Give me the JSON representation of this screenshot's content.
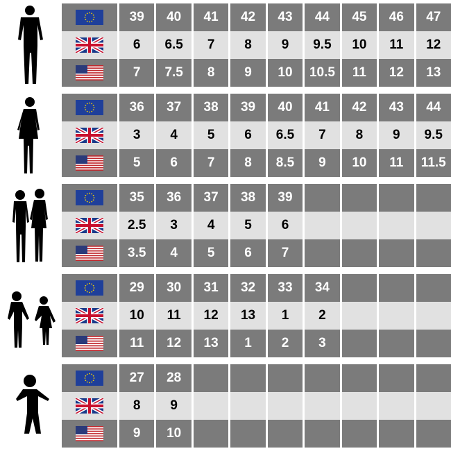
{
  "flags": [
    "eu-flag-icon",
    "uk-flag-icon",
    "us-flag-icon"
  ],
  "colors": {
    "dark_row": "#7b7b7b",
    "light_row": "#e1e1e1"
  },
  "groups": [
    {
      "name": "men",
      "icon": "man-silhouette-icon",
      "eu": [
        "39",
        "40",
        "41",
        "42",
        "43",
        "44",
        "45",
        "46",
        "47"
      ],
      "uk": [
        "6",
        "6.5",
        "7",
        "8",
        "9",
        "9.5",
        "10",
        "11",
        "12"
      ],
      "us": [
        "7",
        "7.5",
        "8",
        "9",
        "10",
        "10.5",
        "11",
        "12",
        "13"
      ]
    },
    {
      "name": "women",
      "icon": "woman-silhouette-icon",
      "eu": [
        "36",
        "37",
        "38",
        "39",
        "40",
        "41",
        "42",
        "43",
        "44"
      ],
      "uk": [
        "3",
        "4",
        "5",
        "6",
        "6.5",
        "7",
        "8",
        "9",
        "9.5"
      ],
      "us": [
        "5",
        "6",
        "7",
        "8",
        "8.5",
        "9",
        "10",
        "11",
        "11.5"
      ]
    },
    {
      "name": "teens",
      "icon": "teens-silhouette-icon",
      "eu": [
        "35",
        "36",
        "37",
        "38",
        "39",
        "",
        "",
        "",
        ""
      ],
      "uk": [
        "2.5",
        "3",
        "4",
        "5",
        "6",
        "",
        "",
        "",
        ""
      ],
      "us": [
        "3.5",
        "4",
        "5",
        "6",
        "7",
        "",
        "",
        "",
        ""
      ]
    },
    {
      "name": "kids",
      "icon": "kids-silhouette-icon",
      "eu": [
        "29",
        "30",
        "31",
        "32",
        "33",
        "34",
        "",
        "",
        ""
      ],
      "uk": [
        "10",
        "11",
        "12",
        "13",
        "1",
        "2",
        "",
        "",
        ""
      ],
      "us": [
        "11",
        "12",
        "13",
        "1",
        "2",
        "3",
        "",
        "",
        ""
      ]
    },
    {
      "name": "toddler",
      "icon": "toddler-silhouette-icon",
      "eu": [
        "27",
        "28",
        "",
        "",
        "",
        "",
        "",
        "",
        ""
      ],
      "uk": [
        "8",
        "9",
        "",
        "",
        "",
        "",
        "",
        "",
        ""
      ],
      "us": [
        "9",
        "10",
        "",
        "",
        "",
        "",
        "",
        "",
        ""
      ]
    }
  ]
}
